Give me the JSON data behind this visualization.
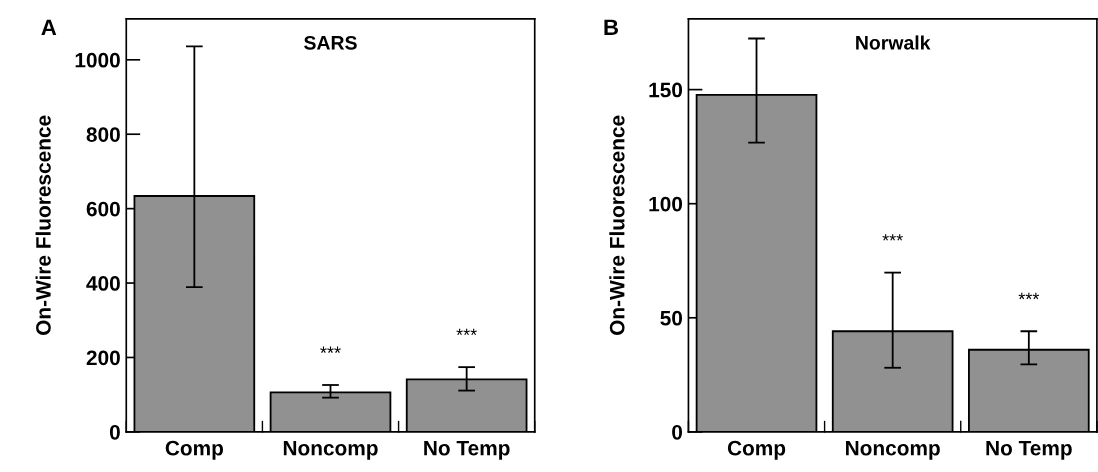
{
  "chart_data": [
    {
      "type": "bar",
      "title": "SARS",
      "ylabel": "On-Wire Fluorescence",
      "categories": [
        "Comp",
        "Noncomp",
        "No Temp"
      ],
      "values": [
        634,
        106,
        141
      ],
      "errors": [
        [
          389,
          1036
        ],
        [
          92,
          126
        ],
        [
          111,
          174
        ]
      ],
      "color": "#919191",
      "ylim": [
        0,
        1110
      ],
      "yticks": [
        0,
        200,
        400,
        600,
        800,
        1000
      ],
      "grid": false,
      "annotations": [
        "A",
        "***",
        "***"
      ]
    },
    {
      "type": "bar",
      "title": "Norwalk",
      "ylabel": "On-Wire Fluorescence",
      "categories": [
        "Comp",
        "Noncomp",
        "No Temp"
      ],
      "values": [
        147.7,
        44.1,
        36.0
      ],
      "errors": [
        [
          126.8,
          172.4
        ],
        [
          28.1,
          69.8
        ],
        [
          29.6,
          44.1
        ]
      ],
      "color": "#919191",
      "ylim": [
        0,
        181
      ],
      "yticks": [
        0,
        50,
        100,
        150
      ],
      "grid": false,
      "annotations": [
        "B",
        "***",
        "***"
      ]
    }
  ]
}
